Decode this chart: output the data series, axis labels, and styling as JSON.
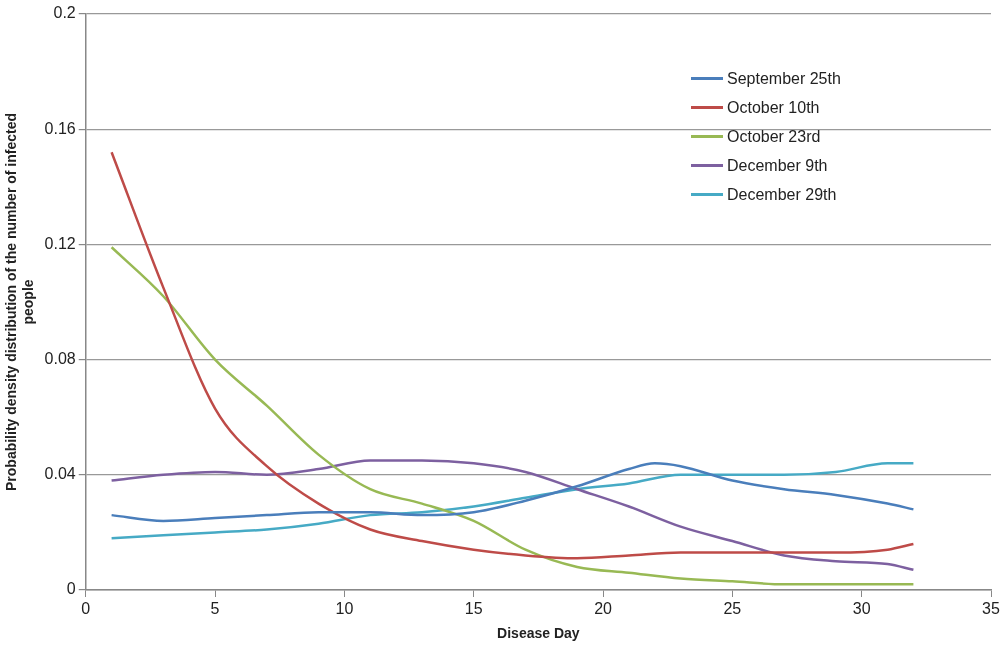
{
  "chart_data": {
    "type": "line",
    "xlabel": "Disease Day",
    "ylabel": "Probability density distribution of the number of infected people",
    "xlim": [
      0,
      35
    ],
    "xticks": [
      0,
      5,
      10,
      15,
      20,
      25,
      30,
      35
    ],
    "ylim": [
      0,
      0.2
    ],
    "yticks": [
      0,
      0.04,
      0.08,
      0.12,
      0.16,
      0.2
    ],
    "grid": "y",
    "legend": "top right",
    "marker": "none",
    "series": [
      {
        "name": "September 25th",
        "color": "#4a7ebb",
        "x": [
          1,
          3,
          5,
          7,
          9,
          11,
          13,
          15,
          17,
          19,
          21,
          22,
          23,
          25,
          27,
          29,
          31,
          32
        ],
        "values": [
          0.026,
          0.024,
          0.025,
          0.026,
          0.027,
          0.027,
          0.026,
          0.027,
          0.031,
          0.036,
          0.042,
          0.044,
          0.043,
          0.038,
          0.035,
          0.033,
          0.03,
          0.028
        ]
      },
      {
        "name": "October 10th",
        "color": "#be4b48",
        "x": [
          1,
          3,
          5,
          7,
          9,
          11,
          13,
          15,
          17,
          19,
          21,
          23,
          25,
          27,
          29,
          31,
          32
        ],
        "values": [
          0.152,
          0.105,
          0.063,
          0.043,
          0.03,
          0.021,
          0.017,
          0.014,
          0.012,
          0.011,
          0.012,
          0.013,
          0.013,
          0.013,
          0.013,
          0.014,
          0.016
        ]
      },
      {
        "name": "October 23rd",
        "color": "#98b954",
        "x": [
          1,
          3,
          5,
          7,
          9,
          11,
          13,
          15,
          17,
          19,
          21,
          23,
          25,
          27,
          29,
          31,
          32
        ],
        "values": [
          0.119,
          0.102,
          0.08,
          0.064,
          0.047,
          0.035,
          0.03,
          0.024,
          0.014,
          0.008,
          0.006,
          0.004,
          0.003,
          0.002,
          0.002,
          0.002,
          0.002
        ]
      },
      {
        "name": "December 9th",
        "color": "#7d60a0",
        "x": [
          1,
          3,
          5,
          7,
          9,
          11,
          13,
          15,
          17,
          19,
          21,
          23,
          25,
          27,
          29,
          31,
          32
        ],
        "values": [
          0.038,
          0.04,
          0.041,
          0.04,
          0.042,
          0.045,
          0.045,
          0.044,
          0.041,
          0.035,
          0.029,
          0.022,
          0.017,
          0.012,
          0.01,
          0.009,
          0.007
        ]
      },
      {
        "name": "December 29th",
        "color": "#46aac5",
        "x": [
          1,
          3,
          5,
          7,
          9,
          11,
          13,
          15,
          17,
          19,
          21,
          23,
          25,
          27,
          29,
          31,
          32
        ],
        "values": [
          0.018,
          0.019,
          0.02,
          0.021,
          0.023,
          0.026,
          0.027,
          0.029,
          0.032,
          0.035,
          0.037,
          0.04,
          0.04,
          0.04,
          0.041,
          0.044,
          0.044
        ]
      }
    ]
  }
}
